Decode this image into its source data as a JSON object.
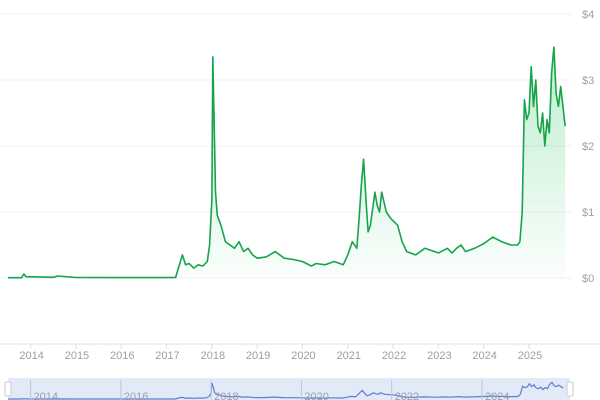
{
  "colors": {
    "line": "#16a34a",
    "fill_top": "#22c55e",
    "grid": "#eef0f3",
    "axis": "#dcdfe4",
    "tick_text": "#9aa0aa",
    "navigator_bg": "#e3eaf7",
    "navigator_line": "#5b7fd1",
    "handle": "#c7cbd3"
  },
  "chart_data": {
    "type": "area",
    "title": "",
    "xlabel": "",
    "ylabel": "",
    "xlim": [
      2013.5,
      2025.95
    ],
    "ylim": [
      0,
      4
    ],
    "y_tick_values": [
      0,
      1,
      2,
      3,
      4
    ],
    "y_tick_labels": [
      "$0",
      "$1",
      "$2",
      "$3",
      "$4"
    ],
    "x_tick_values": [
      2014,
      2015,
      2016,
      2017,
      2018,
      2019,
      2020,
      2021,
      2022,
      2023,
      2024,
      2025
    ],
    "x_tick_labels": [
      "2014",
      "2015",
      "2016",
      "2017",
      "2018",
      "2019",
      "2020",
      "2021",
      "2022",
      "2023",
      "2024",
      "2025"
    ],
    "grid": true,
    "legend": "none",
    "series": [
      {
        "x": [
          2013.5,
          2013.8,
          2013.85,
          2013.9,
          2014.5,
          2014.6,
          2015.0,
          2016.0,
          2017.0,
          2017.2,
          2017.35,
          2017.42,
          2017.5,
          2017.6,
          2017.7,
          2017.8,
          2017.9,
          2017.95,
          2018.0,
          2018.02,
          2018.05,
          2018.08,
          2018.12,
          2018.2,
          2018.3,
          2018.4,
          2018.5,
          2018.6,
          2018.7,
          2018.8,
          2018.9,
          2019.0,
          2019.2,
          2019.4,
          2019.6,
          2019.8,
          2020.0,
          2020.2,
          2020.3,
          2020.5,
          2020.7,
          2020.9,
          2021.0,
          2021.1,
          2021.2,
          2021.25,
          2021.3,
          2021.35,
          2021.4,
          2021.45,
          2021.5,
          2021.6,
          2021.65,
          2021.7,
          2021.75,
          2021.85,
          2021.95,
          2022.1,
          2022.2,
          2022.3,
          2022.5,
          2022.7,
          2023.0,
          2023.2,
          2023.3,
          2023.4,
          2023.5,
          2023.6,
          2023.8,
          2024.0,
          2024.2,
          2024.4,
          2024.6,
          2024.75,
          2024.8,
          2024.85,
          2024.9,
          2024.95,
          2025.0,
          2025.05,
          2025.1,
          2025.15,
          2025.2,
          2025.25,
          2025.3,
          2025.35,
          2025.4,
          2025.45,
          2025.5,
          2025.55,
          2025.6,
          2025.65,
          2025.7,
          2025.75,
          2025.8
        ],
        "y": [
          0.005,
          0.005,
          0.06,
          0.02,
          0.01,
          0.03,
          0.008,
          0.006,
          0.006,
          0.008,
          0.35,
          0.2,
          0.22,
          0.15,
          0.2,
          0.18,
          0.25,
          0.5,
          1.2,
          3.35,
          2.4,
          1.3,
          0.95,
          0.8,
          0.55,
          0.5,
          0.45,
          0.55,
          0.4,
          0.45,
          0.35,
          0.3,
          0.32,
          0.4,
          0.3,
          0.28,
          0.25,
          0.18,
          0.22,
          0.2,
          0.25,
          0.2,
          0.35,
          0.55,
          0.45,
          0.9,
          1.4,
          1.8,
          1.2,
          0.7,
          0.8,
          1.3,
          1.1,
          1.0,
          1.3,
          1.0,
          0.9,
          0.8,
          0.55,
          0.4,
          0.35,
          0.45,
          0.38,
          0.45,
          0.38,
          0.45,
          0.5,
          0.4,
          0.45,
          0.52,
          0.62,
          0.55,
          0.5,
          0.5,
          0.55,
          1.0,
          2.7,
          2.4,
          2.5,
          3.2,
          2.6,
          3.0,
          2.3,
          2.2,
          2.5,
          2.0,
          2.4,
          2.2,
          3.1,
          3.5,
          2.8,
          2.6,
          2.9,
          2.6,
          2.3
        ]
      }
    ],
    "navigator": {
      "x_tick_labels": [
        "2014",
        "2016",
        "2018",
        "2020",
        "2022",
        "2024"
      ]
    }
  }
}
